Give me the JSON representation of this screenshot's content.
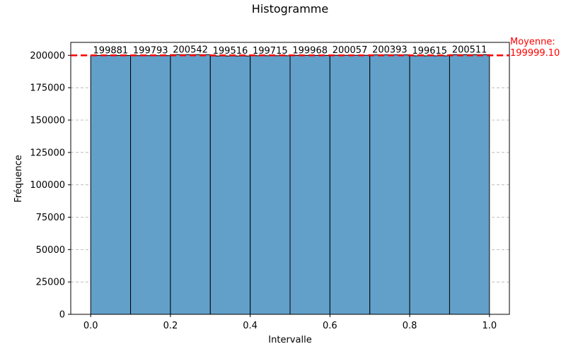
{
  "chart_data": {
    "type": "bar",
    "title": "Histogramme",
    "xlabel": "Intervalle",
    "ylabel": "Fréquence",
    "xlim": [
      -0.05,
      1.05
    ],
    "ylim": [
      0,
      210000
    ],
    "x_ticks": [
      "0.0",
      "0.2",
      "0.4",
      "0.6",
      "0.8",
      "1.0"
    ],
    "y_ticks": [
      "0",
      "25000",
      "50000",
      "75000",
      "100000",
      "125000",
      "150000",
      "175000",
      "200000"
    ],
    "bins": [
      {
        "start": 0.0,
        "end": 0.1,
        "value": 199881
      },
      {
        "start": 0.1,
        "end": 0.2,
        "value": 199793
      },
      {
        "start": 0.2,
        "end": 0.3,
        "value": 200542
      },
      {
        "start": 0.3,
        "end": 0.4,
        "value": 199516
      },
      {
        "start": 0.4,
        "end": 0.5,
        "value": 199715
      },
      {
        "start": 0.5,
        "end": 0.6,
        "value": 199968
      },
      {
        "start": 0.6,
        "end": 0.7,
        "value": 200057
      },
      {
        "start": 0.7,
        "end": 0.8,
        "value": 200393
      },
      {
        "start": 0.8,
        "end": 0.9,
        "value": 199615
      },
      {
        "start": 0.9,
        "end": 1.0,
        "value": 200511
      }
    ],
    "data_labels": [
      "199881",
      "199793",
      "200542",
      "199516",
      "199715",
      "199968",
      "200057",
      "200393",
      "199615",
      "200511"
    ],
    "mean_line": {
      "value": 199999.1,
      "label_line1": "Moyenne:",
      "label_line2": "199999.10"
    },
    "grid": "y dashed",
    "colors": {
      "bar_fill": "#62a0ca",
      "bar_edge": "#000000",
      "mean_line": "#ff0000",
      "grid": "#b0b0b0"
    }
  }
}
